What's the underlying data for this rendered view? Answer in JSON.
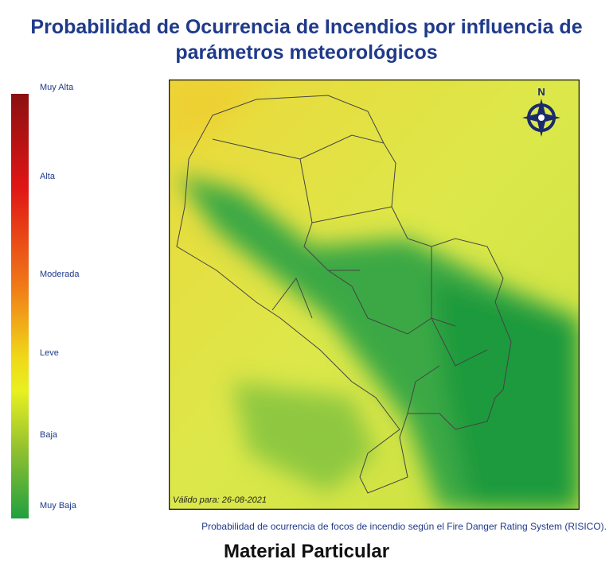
{
  "title": "Probabilidad de Ocurrencia de Incendios por influencia de parámetros meteorológicos",
  "legend": {
    "labels": [
      "Muy Alta",
      "Alta",
      "Moderada",
      "Leve",
      "Baja",
      "Muy Baja"
    ]
  },
  "map": {
    "north": "N",
    "valid_label": "Válido para: 26-08-2021"
  },
  "caption": "Probabilidad de ocurrencia de focos de incendio según el Fire Danger Rating System (RISICO).",
  "footer": "Material Particular"
}
